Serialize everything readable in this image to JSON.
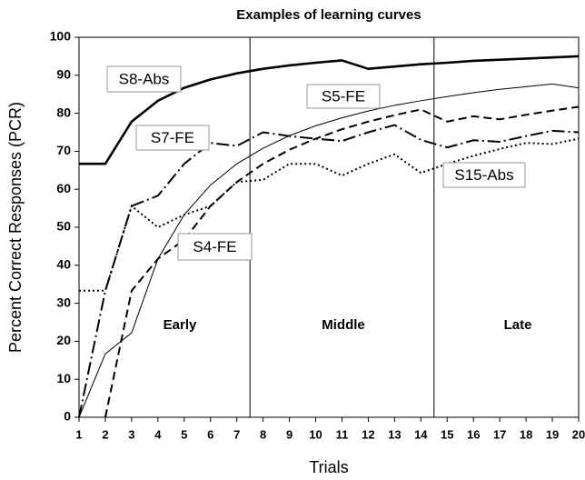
{
  "chart_data": {
    "type": "line",
    "title": "Examples of learning curves",
    "x_label": "Trials",
    "y_label": "Percent Correct Responses (PCR)",
    "x": [
      1,
      2,
      3,
      4,
      5,
      6,
      7,
      8,
      9,
      10,
      11,
      12,
      13,
      14,
      15,
      16,
      17,
      18,
      19,
      20
    ],
    "xlim": [
      1,
      20
    ],
    "xticks": [
      1,
      2,
      3,
      4,
      5,
      6,
      7,
      8,
      9,
      10,
      11,
      12,
      13,
      14,
      15,
      16,
      17,
      18,
      19,
      20
    ],
    "ylim": [
      0,
      100
    ],
    "yticks": [
      0,
      10,
      20,
      30,
      40,
      50,
      60,
      70,
      80,
      90,
      100
    ],
    "dividers": [
      7.5,
      14.5
    ],
    "annotations": [
      "Early",
      "Middle",
      "Late"
    ],
    "series": [
      {
        "name": "S8-Abs",
        "color": "#000000",
        "width": 2.6,
        "dash": "none",
        "values": [
          66.7,
          66.7,
          77.8,
          83.3,
          86.7,
          88.9,
          90.5,
          91.7,
          92.6,
          93.3,
          93.9,
          91.7,
          92.3,
          92.9,
          93.3,
          93.8,
          94.1,
          94.4,
          94.7,
          95.0
        ]
      },
      {
        "name": "S5-FE",
        "color": "#000000",
        "width": 1,
        "dash": "none",
        "values": [
          0,
          16.7,
          22.2,
          41.7,
          53.3,
          61.1,
          66.7,
          70.8,
          74.1,
          76.7,
          78.8,
          80.6,
          82.1,
          83.3,
          84.4,
          85.4,
          86.3,
          87.0,
          87.7,
          86.7
        ]
      },
      {
        "name": "S7-FE",
        "color": "#000000",
        "width": 2,
        "dash": "14 4 2 4",
        "values": [
          0,
          33.3,
          55.6,
          58.3,
          66.7,
          72.2,
          71.4,
          75.0,
          74.0,
          73.3,
          72.7,
          75.0,
          76.9,
          73.0,
          71.0,
          72.9,
          72.5,
          74.0,
          75.4,
          75.0
        ]
      },
      {
        "name": "S15-Abs",
        "color": "#000000",
        "width": 2,
        "dash": "2 3",
        "values": [
          33.3,
          33.3,
          55.6,
          50.0,
          53.3,
          55.6,
          61.9,
          62.5,
          66.7,
          66.7,
          63.6,
          66.7,
          69.2,
          64.3,
          66.7,
          68.8,
          70.6,
          72.2,
          71.9,
          73.3
        ]
      },
      {
        "name": "S4-FE",
        "color": "#000000",
        "width": 2,
        "dash": "9 5",
        "values": [
          null,
          0,
          33.3,
          41.7,
          46.7,
          55.6,
          61.9,
          66.7,
          70.4,
          73.3,
          75.8,
          77.8,
          79.5,
          81.0,
          77.8,
          79.2,
          78.4,
          79.6,
          80.7,
          81.7
        ]
      }
    ]
  }
}
